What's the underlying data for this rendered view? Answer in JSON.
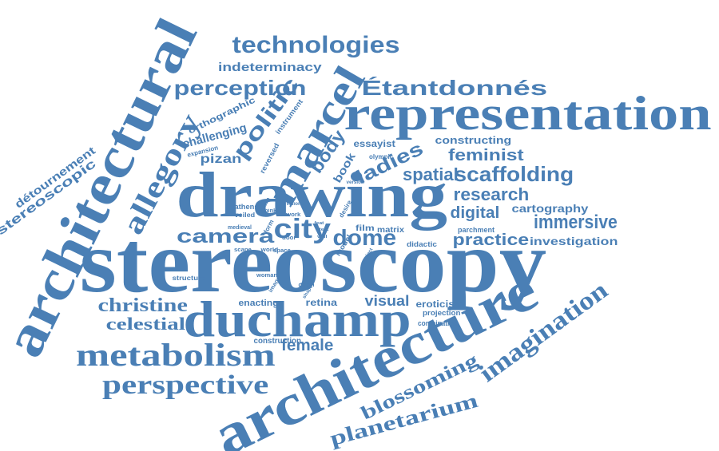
{
  "colors": {
    "ink": "#4a7fb5",
    "background": "#ffffff"
  },
  "words": [
    "stereoscopy",
    "architecture",
    "architectural",
    "drawing",
    "representation",
    "duchamp",
    "metabolism",
    "marcel",
    "perspective",
    "allegory",
    "technologies",
    "perception",
    "Étantdonnés",
    "politic",
    "scaffolding",
    "imagination",
    "planetarium",
    "blossoming",
    "christine",
    "celestial",
    "ladies",
    "camera",
    "city",
    "dome",
    "immersive",
    "research",
    "spatial",
    "feminist",
    "female",
    "digital",
    "practice",
    "investigation",
    "cartography",
    "détournement",
    "stereoscopic",
    "indeterminacy",
    "body",
    "visual",
    "book",
    "constructing",
    "essayist",
    "pizan",
    "challenging",
    "orthographic",
    "eroticism",
    "retina",
    "enacting",
    "film",
    "matrix",
    "didactic",
    "parchment",
    "projection",
    "combination",
    "construction",
    "expansion",
    "instrument",
    "reversed",
    "olympic",
    "version",
    "athens",
    "veiled",
    "drawn",
    "think",
    "vision",
    "work",
    "desire",
    "medieval",
    "form",
    "world",
    "door",
    "scape",
    "space",
    "model",
    "grasp",
    "structure",
    "woman",
    "image",
    "depth",
    "shape",
    "project",
    "feat",
    "text",
    "veil"
  ]
}
